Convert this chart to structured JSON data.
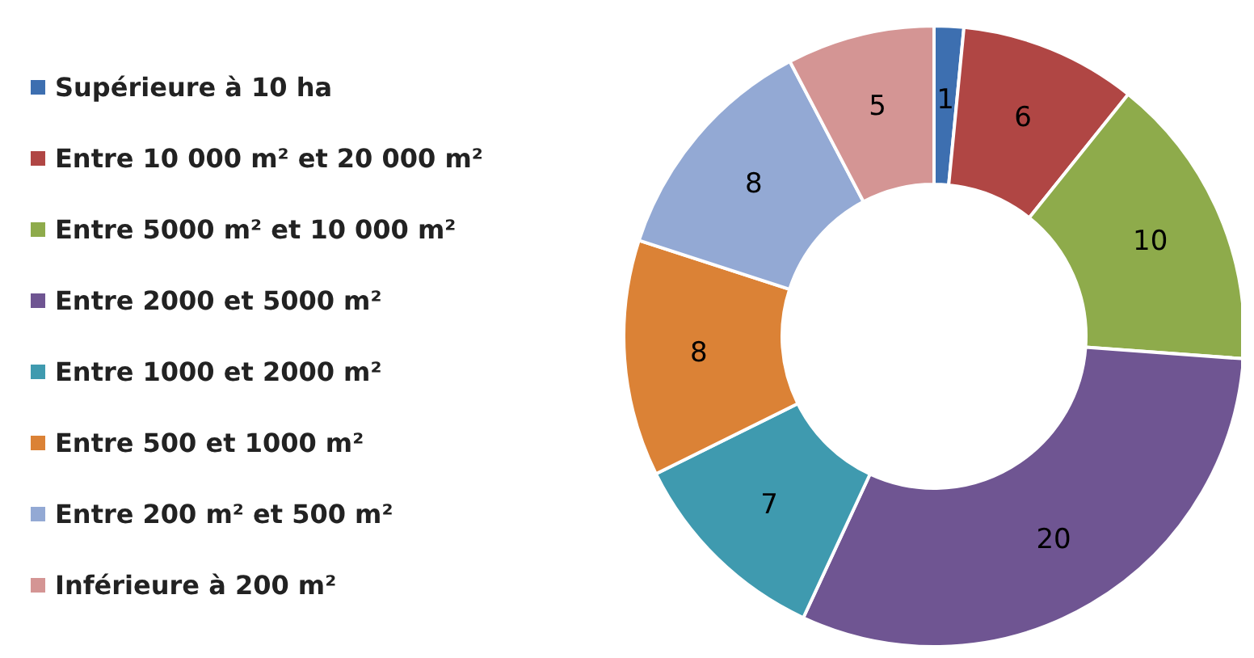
{
  "chart_data": {
    "type": "donut",
    "categories": [
      "Supérieure à 10 ha",
      "Entre 10 000 m² et 20 000 m²",
      "Entre 5000 m² et 10 000 m²",
      "Entre 2000 et 5000 m²",
      "Entre 1000 et 2000 m²",
      "Entre 500 et 1000 m²",
      "Entre 200 m² et 500 m²",
      "Inférieure à 200 m²"
    ],
    "values": [
      1,
      6,
      10,
      20,
      7,
      8,
      8,
      5
    ],
    "colors": [
      "#3d6fb0",
      "#b04644",
      "#8eab4b",
      "#6f5592",
      "#3f9aaf",
      "#db8236",
      "#93a9d4",
      "#d49594"
    ],
    "data_labels": true,
    "legend": "left"
  }
}
